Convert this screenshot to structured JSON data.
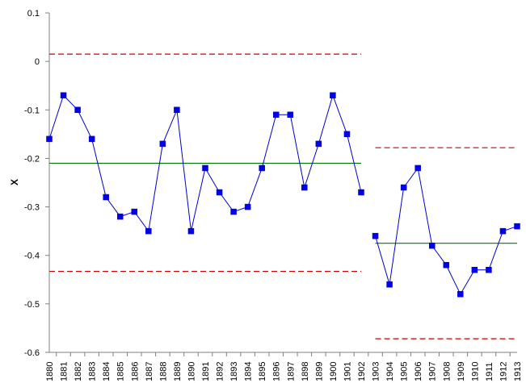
{
  "chart_data": {
    "type": "line",
    "title": "",
    "xlabel": "",
    "ylabel": "X",
    "ylim": [
      -0.6,
      0.1
    ],
    "yticks": [
      0.1,
      0,
      -0.1,
      -0.2,
      -0.3,
      -0.4,
      -0.5,
      -0.6
    ],
    "ytick_labels": [
      "0.1",
      "0",
      "-0.1",
      "-0.2",
      "-0.3",
      "-0.4",
      "-0.5",
      "-0.6"
    ],
    "grid": false,
    "legend": "none",
    "categories": [
      "1880",
      "1881",
      "1882",
      "1883",
      "1884",
      "1885",
      "1886",
      "1887",
      "1888",
      "1889",
      "1890",
      "1891",
      "1892",
      "1893",
      "1894",
      "1895",
      "1896",
      "1897",
      "1898",
      "1899",
      "1900",
      "1901",
      "1902",
      "1903",
      "1904",
      "1905",
      "1906",
      "1907",
      "1908",
      "1909",
      "1910",
      "1911",
      "1912",
      "1913"
    ],
    "segments": [
      {
        "start": 0,
        "end": 22,
        "values": [
          -0.16,
          -0.07,
          -0.1,
          -0.16,
          -0.28,
          -0.32,
          -0.31,
          -0.35,
          -0.17,
          -0.1,
          -0.35,
          -0.22,
          -0.27,
          -0.31,
          -0.3,
          -0.22,
          -0.11,
          -0.11,
          -0.26,
          -0.17,
          -0.07,
          -0.15,
          -0.27
        ],
        "center_line": -0.21,
        "upper_limit": 0.015,
        "lower_limit": -0.433
      },
      {
        "start": 23,
        "end": 33,
        "values": [
          -0.36,
          -0.46,
          -0.26,
          -0.22,
          -0.38,
          -0.42,
          -0.48,
          -0.43,
          -0.43,
          -0.35,
          -0.34
        ],
        "center_line": -0.375,
        "upper_limit": -0.178,
        "lower_limit": -0.572
      }
    ],
    "colors": {
      "data_line": "#0000cc",
      "marker": "#0000ee",
      "center_line": "#007a00",
      "limit_line": "#cc0000",
      "axis": "#808080"
    }
  }
}
